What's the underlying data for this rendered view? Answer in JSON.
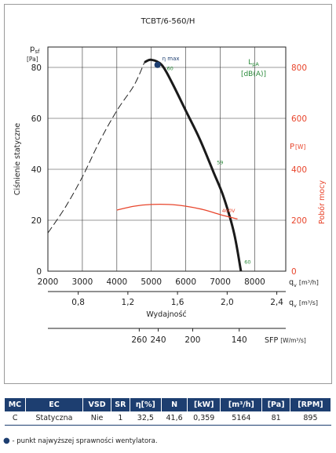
{
  "chart_data": {
    "type": "line",
    "title": "TCBT/6-560/H",
    "y_left": {
      "symbol": "p",
      "subscript": "sf",
      "unit": "[Pa]",
      "label": "Ciśnienie statyczne",
      "range": [
        0,
        88
      ],
      "ticks": [
        "0",
        "20",
        "40",
        "60",
        "80"
      ],
      "tick_values": [
        0,
        20,
        40,
        60,
        80
      ]
    },
    "y_right": {
      "symbol": "P",
      "unit": "[W]",
      "label": "Pobór mocy",
      "color": "#e8452c",
      "range": [
        0,
        880
      ],
      "ticks": [
        "0",
        "200",
        "400",
        "600",
        "800"
      ],
      "tick_values": [
        0,
        200,
        400,
        600,
        800
      ]
    },
    "x_axis_1": {
      "symbol": "q",
      "subscript": "v",
      "unit": "[m³/h]",
      "range": [
        2000,
        8900
      ],
      "ticks": [
        "2000",
        "3000",
        "4000",
        "5000",
        "6000",
        "7000",
        "8000"
      ],
      "tick_values": [
        2000,
        3000,
        4000,
        5000,
        6000,
        7000,
        8000
      ]
    },
    "x_axis_2": {
      "symbol": "q",
      "subscript": "v",
      "unit": "[m³/s]",
      "ticks": [
        "0,8",
        "1,2",
        "1,6",
        "2,0",
        "2,4"
      ],
      "tick_values": [
        0.8,
        1.2,
        1.6,
        2.0,
        2.4
      ]
    },
    "x_label": "Wydajność",
    "sfp_axis": {
      "label": "SFP",
      "unit": "[W/m³/s]",
      "ticks": [
        "260",
        "240",
        "200",
        "140"
      ],
      "tick_positions_m3h": [
        4650,
        5200,
        6200,
        7550
      ]
    },
    "lpa_label": {
      "symbol": "L",
      "subscript": "pA",
      "unit": "[dB(A)]",
      "color": "#2a8a3a"
    },
    "series": [
      {
        "role": "pressure_unstable",
        "style": "dashed",
        "x": [
          2000,
          2500,
          3000,
          3500,
          4000,
          4500,
          4800
        ],
        "y": [
          15,
          25,
          37,
          51,
          63,
          73,
          82
        ]
      },
      {
        "role": "pressure",
        "style": "solid",
        "x": [
          4800,
          5000,
          5300,
          5600,
          6000,
          6400,
          6800,
          7100,
          7400,
          7600
        ],
        "y": [
          82,
          83,
          81,
          74,
          63,
          52,
          39,
          29,
          15,
          0
        ]
      },
      {
        "role": "power",
        "name": "400V",
        "color": "#e8452c",
        "axis": "right",
        "x": [
          4000,
          4500,
          5000,
          5500,
          6000,
          6500,
          7000,
          7500
        ],
        "y": [
          240,
          255,
          262,
          262,
          255,
          242,
          222,
          205
        ]
      }
    ],
    "noise_labels": [
      {
        "text": "60",
        "x": 5450,
        "y": 79
      },
      {
        "text": "59",
        "x": 6900,
        "y": 42
      },
      {
        "text": "60",
        "x": 7700,
        "y": 3
      }
    ],
    "max_efficiency": {
      "label": "η max",
      "x": 5180,
      "y": 81
    },
    "grid": true
  },
  "table": {
    "headers": [
      "MC",
      "EC",
      "VSD",
      "SR",
      "η[%]",
      "N",
      "[kW]",
      "[m³/h]",
      "[Pa]",
      "[RPM]"
    ],
    "row": [
      "C",
      "Statyczna",
      "Nie",
      "1",
      "32,5",
      "41,6",
      "0,359",
      "5164",
      "81",
      "895"
    ]
  },
  "footnote": "- punkt najwyższej sprawności wentylatora."
}
